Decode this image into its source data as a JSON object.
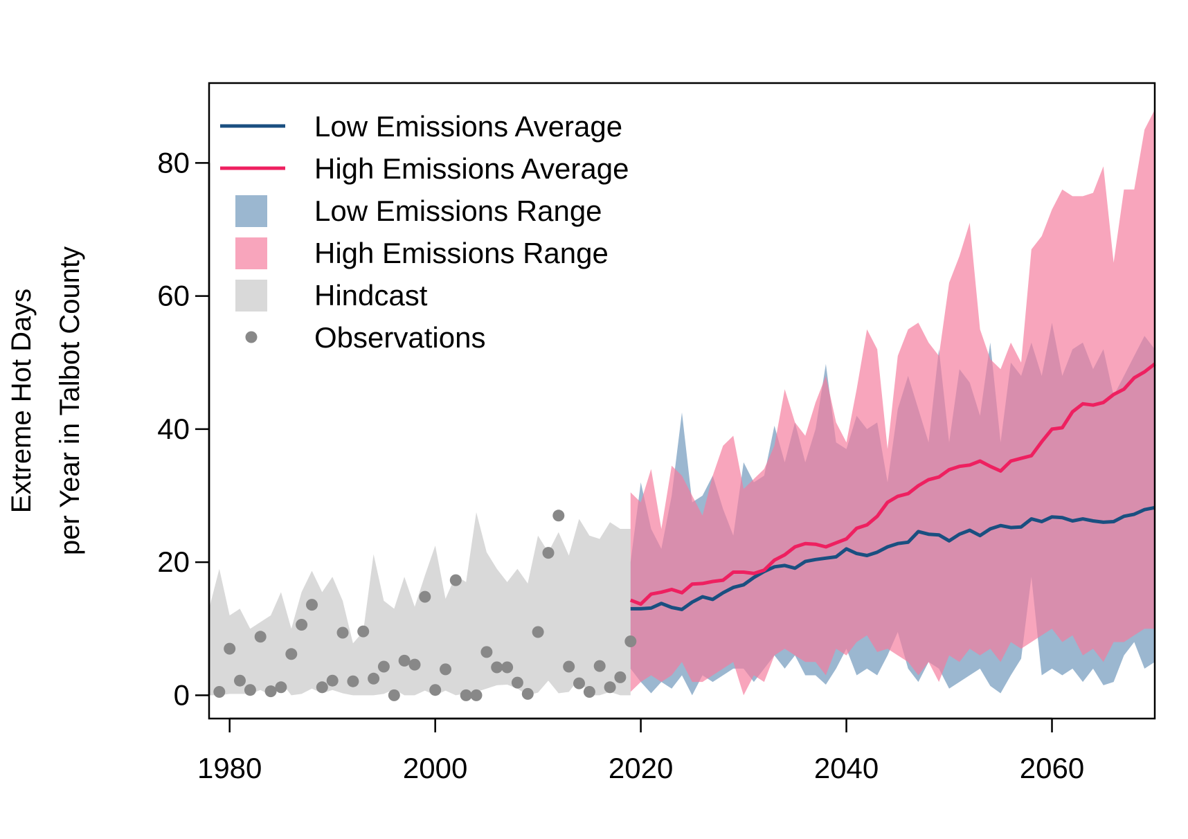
{
  "chart_data": {
    "type": "line",
    "title": "",
    "xlabel": "",
    "ylabel_lines": [
      "Extreme Hot Days",
      "per Year in Talbot County"
    ],
    "xlim": [
      1978,
      2070
    ],
    "ylim": [
      -3.5,
      92
    ],
    "x_ticks": [
      1980,
      2000,
      2020,
      2040,
      2060
    ],
    "y_ticks": [
      0,
      20,
      40,
      60,
      80
    ],
    "grid": false,
    "legend_position": "top-left",
    "colors": {
      "low_line": "#1a4f80",
      "high_line": "#ee2060",
      "low_range": "#7a9fc0",
      "high_range": "#f57a9c",
      "hindcast": "#d9d9d9",
      "observations": "#888888"
    },
    "legend": [
      {
        "label": "Low Emissions Average",
        "kind": "line",
        "color_key": "low_line"
      },
      {
        "label": "High Emissions Average",
        "kind": "line",
        "color_key": "high_line"
      },
      {
        "label": "Low Emissions Range",
        "kind": "box",
        "color_key": "low_range"
      },
      {
        "label": "High Emissions Range",
        "kind": "box",
        "color_key": "high_range"
      },
      {
        "label": "Hindcast",
        "kind": "box",
        "color_key": "hindcast"
      },
      {
        "label": "Observations",
        "kind": "point",
        "color_key": "observations"
      }
    ],
    "series": [
      {
        "name": "Observations",
        "type": "scatter",
        "x": [
          1979,
          1980,
          1981,
          1982,
          1983,
          1984,
          1985,
          1986,
          1987,
          1988,
          1989,
          1990,
          1991,
          1992,
          1993,
          1994,
          1995,
          1996,
          1997,
          1998,
          1999,
          2000,
          2001,
          2002,
          2003,
          2004,
          2005,
          2006,
          2007,
          2008,
          2009,
          2010,
          2011,
          2012,
          2013,
          2014,
          2015,
          2016,
          2017,
          2018,
          2019
        ],
        "y": [
          0.5,
          7,
          2.2,
          0.8,
          8.8,
          0.6,
          1.2,
          6.2,
          10.6,
          13.6,
          1.2,
          2.2,
          9.4,
          2.1,
          9.6,
          2.5,
          4.3,
          0,
          5.2,
          4.6,
          14.8,
          0.8,
          3.9,
          17.3,
          0,
          0,
          6.5,
          4.2,
          4.2,
          1.9,
          0.2,
          9.5,
          21.4,
          27,
          4.3,
          1.8,
          0.5,
          4.4,
          1.2,
          2.7,
          8.1
        ]
      },
      {
        "name": "Hindcast",
        "type": "area",
        "x": [
          1978,
          1979,
          1980,
          1981,
          1982,
          1983,
          1984,
          1985,
          1986,
          1987,
          1988,
          1989,
          1990,
          1991,
          1992,
          1993,
          1994,
          1995,
          1996,
          1997,
          1998,
          1999,
          2000,
          2001,
          2002,
          2003,
          2004,
          2005,
          2006,
          2007,
          2008,
          2009,
          2010,
          2011,
          2012,
          2013,
          2014,
          2015,
          2016,
          2017,
          2018,
          2019
        ],
        "upper": [
          13,
          19,
          12,
          13,
          10,
          11,
          12,
          15.5,
          10,
          15.5,
          18.7,
          15.5,
          17.8,
          14.2,
          7.8,
          9.6,
          21.2,
          14.2,
          13,
          17.8,
          13.3,
          18,
          22.5,
          14.5,
          18,
          17,
          27.5,
          21.5,
          19,
          17,
          19,
          16.8,
          24,
          21.5,
          24.5,
          21,
          26.5,
          24,
          23.5,
          26,
          25,
          25
        ],
        "lower": [
          0,
          0,
          0.2,
          0.2,
          0.2,
          0.8,
          0,
          2,
          0,
          0.2,
          1,
          0.3,
          0.8,
          0.3,
          0,
          0,
          0,
          0.2,
          0.9,
          0,
          0,
          0.7,
          0,
          0.7,
          0,
          0.3,
          0.5,
          1,
          1.5,
          1.6,
          1,
          0,
          0.4,
          2.2,
          0.3,
          0.5,
          2.5,
          0,
          0,
          0.5,
          0,
          0
        ]
      },
      {
        "name": "Low Emissions Range",
        "type": "area",
        "x": [
          2019,
          2020,
          2021,
          2022,
          2023,
          2024,
          2025,
          2026,
          2027,
          2028,
          2029,
          2030,
          2031,
          2032,
          2033,
          2034,
          2035,
          2036,
          2037,
          2038,
          2039,
          2040,
          2041,
          2042,
          2043,
          2044,
          2045,
          2046,
          2047,
          2048,
          2049,
          2050,
          2051,
          2052,
          2053,
          2054,
          2055,
          2056,
          2057,
          2058,
          2059,
          2060,
          2061,
          2062,
          2063,
          2064,
          2065,
          2066,
          2067,
          2068,
          2069,
          2070
        ],
        "upper": [
          20,
          32,
          25,
          22,
          30,
          42.5,
          29,
          30,
          33,
          28,
          24,
          35,
          32,
          33,
          40.5,
          35,
          41,
          35,
          40,
          49.8,
          38,
          37,
          42,
          40,
          41,
          32,
          43,
          48,
          43,
          38,
          52,
          38,
          49,
          47,
          42,
          53,
          38,
          50,
          48,
          53,
          48,
          56,
          48,
          52,
          53,
          49,
          52,
          45,
          48,
          51,
          54,
          52
        ],
        "lower": [
          4,
          2,
          0.3,
          2,
          1,
          3,
          0,
          3,
          2,
          3,
          4,
          4,
          2,
          4,
          6,
          4,
          6,
          3,
          3,
          1.6,
          4,
          7,
          3,
          4,
          3,
          6,
          9.5,
          4,
          2,
          5,
          4,
          1,
          2,
          3,
          4,
          1.4,
          0.3,
          3,
          5.5,
          17.8,
          3,
          4,
          3,
          4,
          2,
          4,
          1.5,
          2,
          6,
          8,
          4,
          5
        ]
      },
      {
        "name": "High Emissions Range",
        "type": "area",
        "x": [
          2019,
          2020,
          2021,
          2022,
          2023,
          2024,
          2025,
          2026,
          2027,
          2028,
          2029,
          2030,
          2031,
          2032,
          2033,
          2034,
          2035,
          2036,
          2037,
          2038,
          2039,
          2040,
          2041,
          2042,
          2043,
          2044,
          2045,
          2046,
          2047,
          2048,
          2049,
          2050,
          2051,
          2052,
          2053,
          2054,
          2055,
          2056,
          2057,
          2058,
          2059,
          2060,
          2061,
          2062,
          2063,
          2064,
          2065,
          2066,
          2067,
          2068,
          2069,
          2070
        ],
        "upper": [
          30.5,
          29,
          34,
          25,
          34.5,
          33,
          30,
          27,
          33,
          37.5,
          39,
          31,
          32.5,
          34,
          37.5,
          46,
          41,
          39,
          44,
          48,
          41,
          38,
          46,
          55,
          52,
          37,
          51,
          55,
          56,
          53,
          51,
          62,
          66,
          71,
          55,
          50.5,
          49,
          53,
          50,
          67,
          69,
          73,
          76,
          75,
          75,
          75.5,
          79.5,
          65,
          76,
          76,
          85,
          88
        ],
        "lower": [
          0.5,
          2,
          3,
          2,
          3,
          5,
          2,
          2,
          3,
          4,
          5,
          0,
          3,
          2,
          6,
          7,
          6,
          5,
          5,
          3,
          7,
          6,
          8,
          9,
          6.5,
          7,
          6,
          5,
          3,
          5,
          2,
          6,
          5,
          7,
          6,
          7,
          5,
          8,
          7,
          8,
          9,
          10,
          8,
          9,
          6,
          7,
          5,
          8,
          8,
          9,
          10,
          10
        ]
      },
      {
        "name": "Low Emissions Average",
        "type": "line",
        "x": [
          2019,
          2020,
          2021,
          2022,
          2023,
          2024,
          2025,
          2026,
          2027,
          2028,
          2029,
          2030,
          2031,
          2032,
          2033,
          2034,
          2035,
          2036,
          2037,
          2038,
          2039,
          2040,
          2041,
          2042,
          2043,
          2044,
          2045,
          2046,
          2047,
          2048,
          2049,
          2050,
          2051,
          2052,
          2053,
          2054,
          2055,
          2056,
          2057,
          2058,
          2059,
          2060,
          2061,
          2062,
          2063,
          2064,
          2065,
          2066,
          2067,
          2068,
          2069,
          2070
        ],
        "y": [
          13,
          13,
          13.1,
          13.8,
          13.2,
          12.9,
          14,
          14.8,
          14.4,
          15.4,
          16.2,
          16.6,
          17.7,
          18.6,
          19.3,
          19.5,
          19.1,
          20.1,
          20.4,
          20.6,
          20.8,
          22,
          21.3,
          21,
          21.5,
          22.3,
          22.8,
          23,
          24.6,
          24.2,
          24.1,
          23.2,
          24.2,
          24.8,
          24,
          25,
          25.5,
          25.2,
          25.3,
          26.5,
          26.1,
          26.8,
          26.7,
          26.2,
          26.5,
          26.2,
          26,
          26.1,
          26.9,
          27.2,
          27.9,
          28.2
        ]
      },
      {
        "name": "High Emissions Average",
        "type": "line",
        "x": [
          2019,
          2020,
          2021,
          2022,
          2023,
          2024,
          2025,
          2026,
          2027,
          2028,
          2029,
          2030,
          2031,
          2032,
          2033,
          2034,
          2035,
          2036,
          2037,
          2038,
          2039,
          2040,
          2041,
          2042,
          2043,
          2044,
          2045,
          2046,
          2047,
          2048,
          2049,
          2050,
          2051,
          2052,
          2053,
          2054,
          2055,
          2056,
          2057,
          2058,
          2059,
          2060,
          2061,
          2062,
          2063,
          2064,
          2065,
          2066,
          2067,
          2068,
          2069,
          2070
        ],
        "y": [
          14.3,
          13.7,
          15.2,
          15.5,
          15.9,
          15.4,
          16.7,
          16.8,
          17.1,
          17.3,
          18.5,
          18.5,
          18.3,
          18.8,
          20.3,
          21.1,
          22.3,
          22.8,
          22.7,
          22.3,
          22.9,
          23.5,
          25.1,
          25.6,
          26.9,
          29,
          29.9,
          30.3,
          31.5,
          32.4,
          32.8,
          33.9,
          34.4,
          34.6,
          35.2,
          34.4,
          33.7,
          35.2,
          35.6,
          36,
          38.1,
          40,
          40.2,
          42.6,
          43.8,
          43.6,
          44,
          45.2,
          46,
          47.7,
          48.6,
          49.8
        ]
      }
    ]
  }
}
